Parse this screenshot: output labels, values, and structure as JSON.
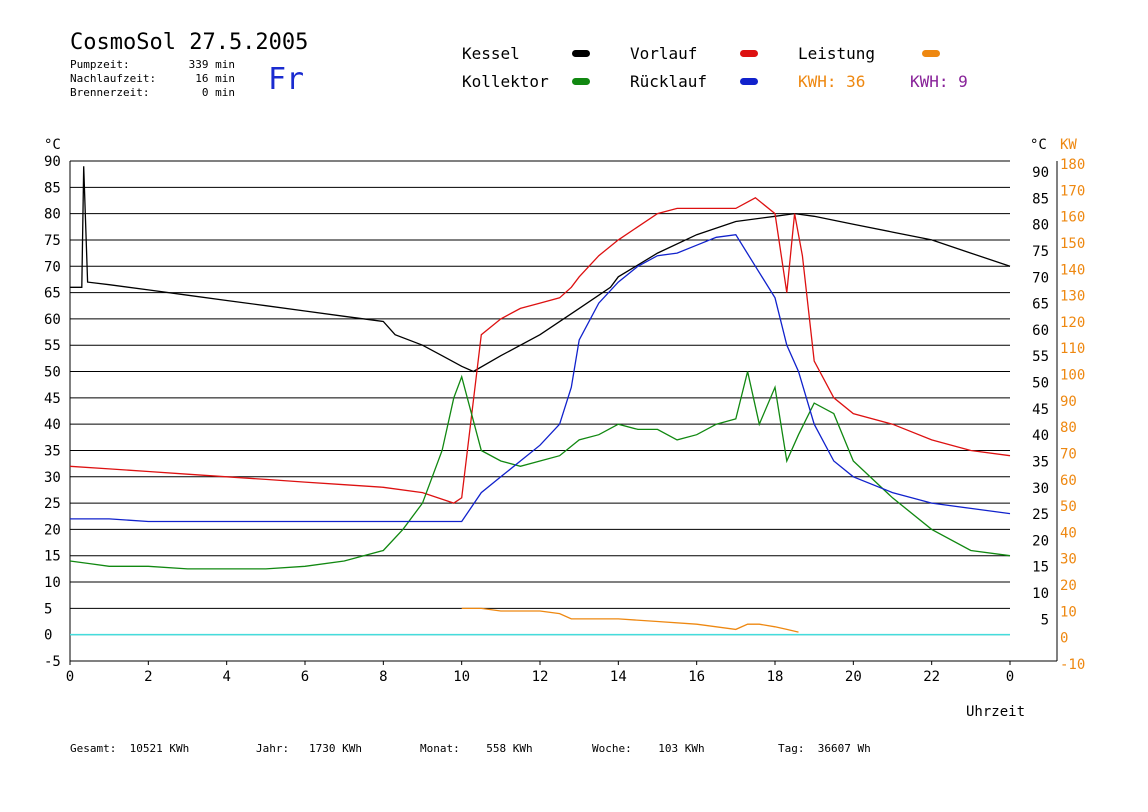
{
  "header": {
    "title": "CosmoSol 27.5.2005",
    "day": "Fr",
    "info": [
      {
        "label": "Pumpzeit:",
        "value": "339 min"
      },
      {
        "label": "Nachlaufzeit:",
        "value": "16 min"
      },
      {
        "label": "Brennerzeit:",
        "value": "0 min"
      }
    ]
  },
  "legend": {
    "kessel": {
      "label": "Kessel",
      "color": "#000000"
    },
    "vorlauf": {
      "label": "Vorlauf",
      "color": "#dd1111"
    },
    "leistung": {
      "label": "Leistung",
      "color": "#ee8811"
    },
    "kollektor": {
      "label": "Kollektor",
      "color": "#118811"
    },
    "ruecklauf": {
      "label": "Rücklauf",
      "color": "#1122cc"
    },
    "kwh1": {
      "label": "KWH:",
      "value": "36",
      "color": "#ee8811"
    },
    "kwh2": {
      "label": "KWH:",
      "value": "9",
      "color": "#882299"
    }
  },
  "footer": {
    "gesamt": {
      "label": "Gesamt:",
      "value": "10521 KWh"
    },
    "jahr": {
      "label": "Jahr:",
      "value": "1730 KWh"
    },
    "monat": {
      "label": "Monat:",
      "value": "558 KWh"
    },
    "woche": {
      "label": "Woche:",
      "value": "103 KWh"
    },
    "tag": {
      "label": "Tag:",
      "value": "36607 Wh"
    }
  },
  "chart_data": {
    "type": "line",
    "xlabel": "Uhrzeit",
    "ylabel_left": "°C",
    "ylabel_right_temp": "°C",
    "ylabel_right_power": "KW",
    "xlim": [
      0,
      24
    ],
    "ylim": [
      -5,
      90
    ],
    "x_ticks": [
      "0",
      "2",
      "4",
      "6",
      "8",
      "10",
      "12",
      "14",
      "16",
      "18",
      "20",
      "22",
      "0"
    ],
    "y_ticks_left": [
      "90",
      "85",
      "80",
      "75",
      "70",
      "65",
      "60",
      "55",
      "50",
      "45",
      "40",
      "35",
      "30",
      "25",
      "20",
      "15",
      "10",
      "5",
      "0",
      "-5"
    ],
    "y_ticks_right_temp": [
      "90",
      "85",
      "80",
      "75",
      "70",
      "65",
      "60",
      "55",
      "50",
      "45",
      "40",
      "35",
      "30",
      "25",
      "20",
      "15",
      "10",
      "5"
    ],
    "y_ticks_right_power": [
      "180",
      "170",
      "160",
      "150",
      "140",
      "130",
      "120",
      "110",
      "100",
      "90",
      "80",
      "70",
      "60",
      "50",
      "40",
      "30",
      "20",
      "10",
      "0",
      "-10"
    ],
    "series": [
      {
        "name": "Kessel",
        "color": "#000000",
        "x": [
          0,
          0.3,
          0.35,
          0.45,
          1,
          2,
          3,
          4,
          5,
          6,
          7,
          8,
          8.3,
          9,
          9.5,
          10,
          10.3,
          11,
          12,
          13,
          13.8,
          14,
          15,
          16,
          17,
          18,
          18.5,
          19,
          20,
          21,
          22,
          23,
          24
        ],
        "y": [
          66,
          66,
          89,
          67,
          66.5,
          65.5,
          64.5,
          63.5,
          62.5,
          61.5,
          60.5,
          59.5,
          57,
          55,
          53,
          51,
          50,
          53,
          57,
          62,
          66,
          68,
          72.5,
          76,
          78.5,
          79.5,
          80,
          79.5,
          78,
          76.5,
          75,
          72.5,
          70
        ]
      },
      {
        "name": "Vorlauf",
        "color": "#dd1111",
        "x": [
          0,
          1,
          2,
          3,
          4,
          5,
          6,
          7,
          8,
          9,
          9.8,
          10,
          10.5,
          11,
          11.5,
          12,
          12.5,
          12.8,
          13,
          13.5,
          14,
          15,
          15.5,
          16,
          16.5,
          17,
          17.5,
          18,
          18.3,
          18.5,
          18.7,
          19,
          19.5,
          20,
          21,
          22,
          23,
          24
        ],
        "y": [
          32,
          31.5,
          31,
          30.5,
          30,
          29.5,
          29,
          28.5,
          28,
          27,
          25,
          26,
          57,
          60,
          62,
          63,
          64,
          66,
          68,
          72,
          75,
          80,
          81,
          81,
          81,
          81,
          83,
          80,
          65,
          80,
          72,
          52,
          45,
          42,
          40,
          37,
          35,
          34
        ]
      },
      {
        "name": "Kollektor",
        "color": "#118811",
        "x": [
          0,
          0.5,
          1,
          2,
          3,
          4,
          5,
          6,
          7,
          8,
          8.5,
          9,
          9.5,
          9.8,
          10,
          10.5,
          11,
          11.5,
          12,
          12.5,
          13,
          13.5,
          14,
          14.5,
          15,
          15.5,
          16,
          16.5,
          17,
          17.3,
          17.6,
          18,
          18.3,
          18.6,
          19,
          19.5,
          20,
          21,
          22,
          23,
          24
        ],
        "y": [
          14,
          13.5,
          13,
          13,
          12.5,
          12.5,
          12.5,
          13,
          14,
          16,
          20,
          25,
          35,
          45,
          49,
          35,
          33,
          32,
          33,
          34,
          37,
          38,
          40,
          39,
          39,
          37,
          38,
          40,
          41,
          50,
          40,
          47,
          33,
          38,
          44,
          42,
          33,
          26,
          20,
          16,
          15
        ]
      },
      {
        "name": "Rücklauf",
        "color": "#1122cc",
        "x": [
          0,
          1,
          2,
          3,
          4,
          5,
          6,
          7,
          8,
          9,
          10,
          10.5,
          11,
          11.5,
          12,
          12.5,
          12.8,
          13,
          13.5,
          14,
          14.5,
          15,
          15.5,
          16,
          16.5,
          17,
          17.5,
          18,
          18.3,
          18.6,
          19,
          19.5,
          20,
          21,
          22,
          23,
          24
        ],
        "y": [
          22,
          22,
          21.5,
          21.5,
          21.5,
          21.5,
          21.5,
          21.5,
          21.5,
          21.5,
          21.5,
          27,
          30,
          33,
          36,
          40,
          47,
          56,
          63,
          67,
          70,
          72,
          72.5,
          74,
          75.5,
          76,
          70,
          64,
          55,
          50,
          40,
          33,
          30,
          27,
          25,
          24,
          23
        ]
      },
      {
        "name": "Leistung",
        "color": "#ee8811",
        "x": [
          10,
          10.5,
          11,
          11.5,
          12,
          12.5,
          12.8,
          13,
          14,
          15,
          16,
          17,
          17.3,
          17.6,
          18,
          18.3,
          18.6
        ],
        "y": [
          5,
          5,
          4.5,
          4.5,
          4.5,
          4,
          3,
          3,
          3,
          2.5,
          2,
          1,
          2,
          2,
          1.5,
          1,
          0.5
        ]
      }
    ]
  }
}
